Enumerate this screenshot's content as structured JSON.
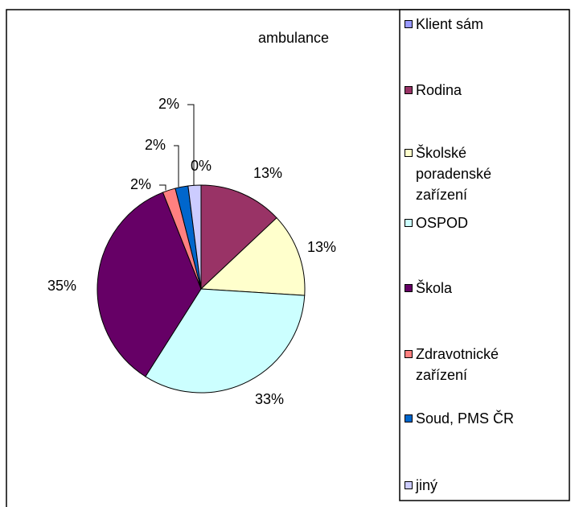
{
  "chart_data": {
    "type": "pie",
    "title": "ambulance",
    "categories": [
      "Klient sám",
      "Rodina",
      "Školské poradenské zařízení",
      "OSPOD",
      "Škola",
      "Zdravotnické zařízení",
      "Soud, PMS ČR",
      "jiný"
    ],
    "values": [
      0,
      13,
      13,
      33,
      35,
      2,
      2,
      2
    ],
    "value_labels": [
      "0%",
      "13%",
      "13%",
      "33%",
      "35%",
      "2%",
      "2%",
      "2%"
    ],
    "colors": [
      "#9999ff",
      "#993366",
      "#ffffcc",
      "#ccffff",
      "#660066",
      "#ff8080",
      "#0066cc",
      "#ccccff"
    ],
    "legend": "right"
  }
}
